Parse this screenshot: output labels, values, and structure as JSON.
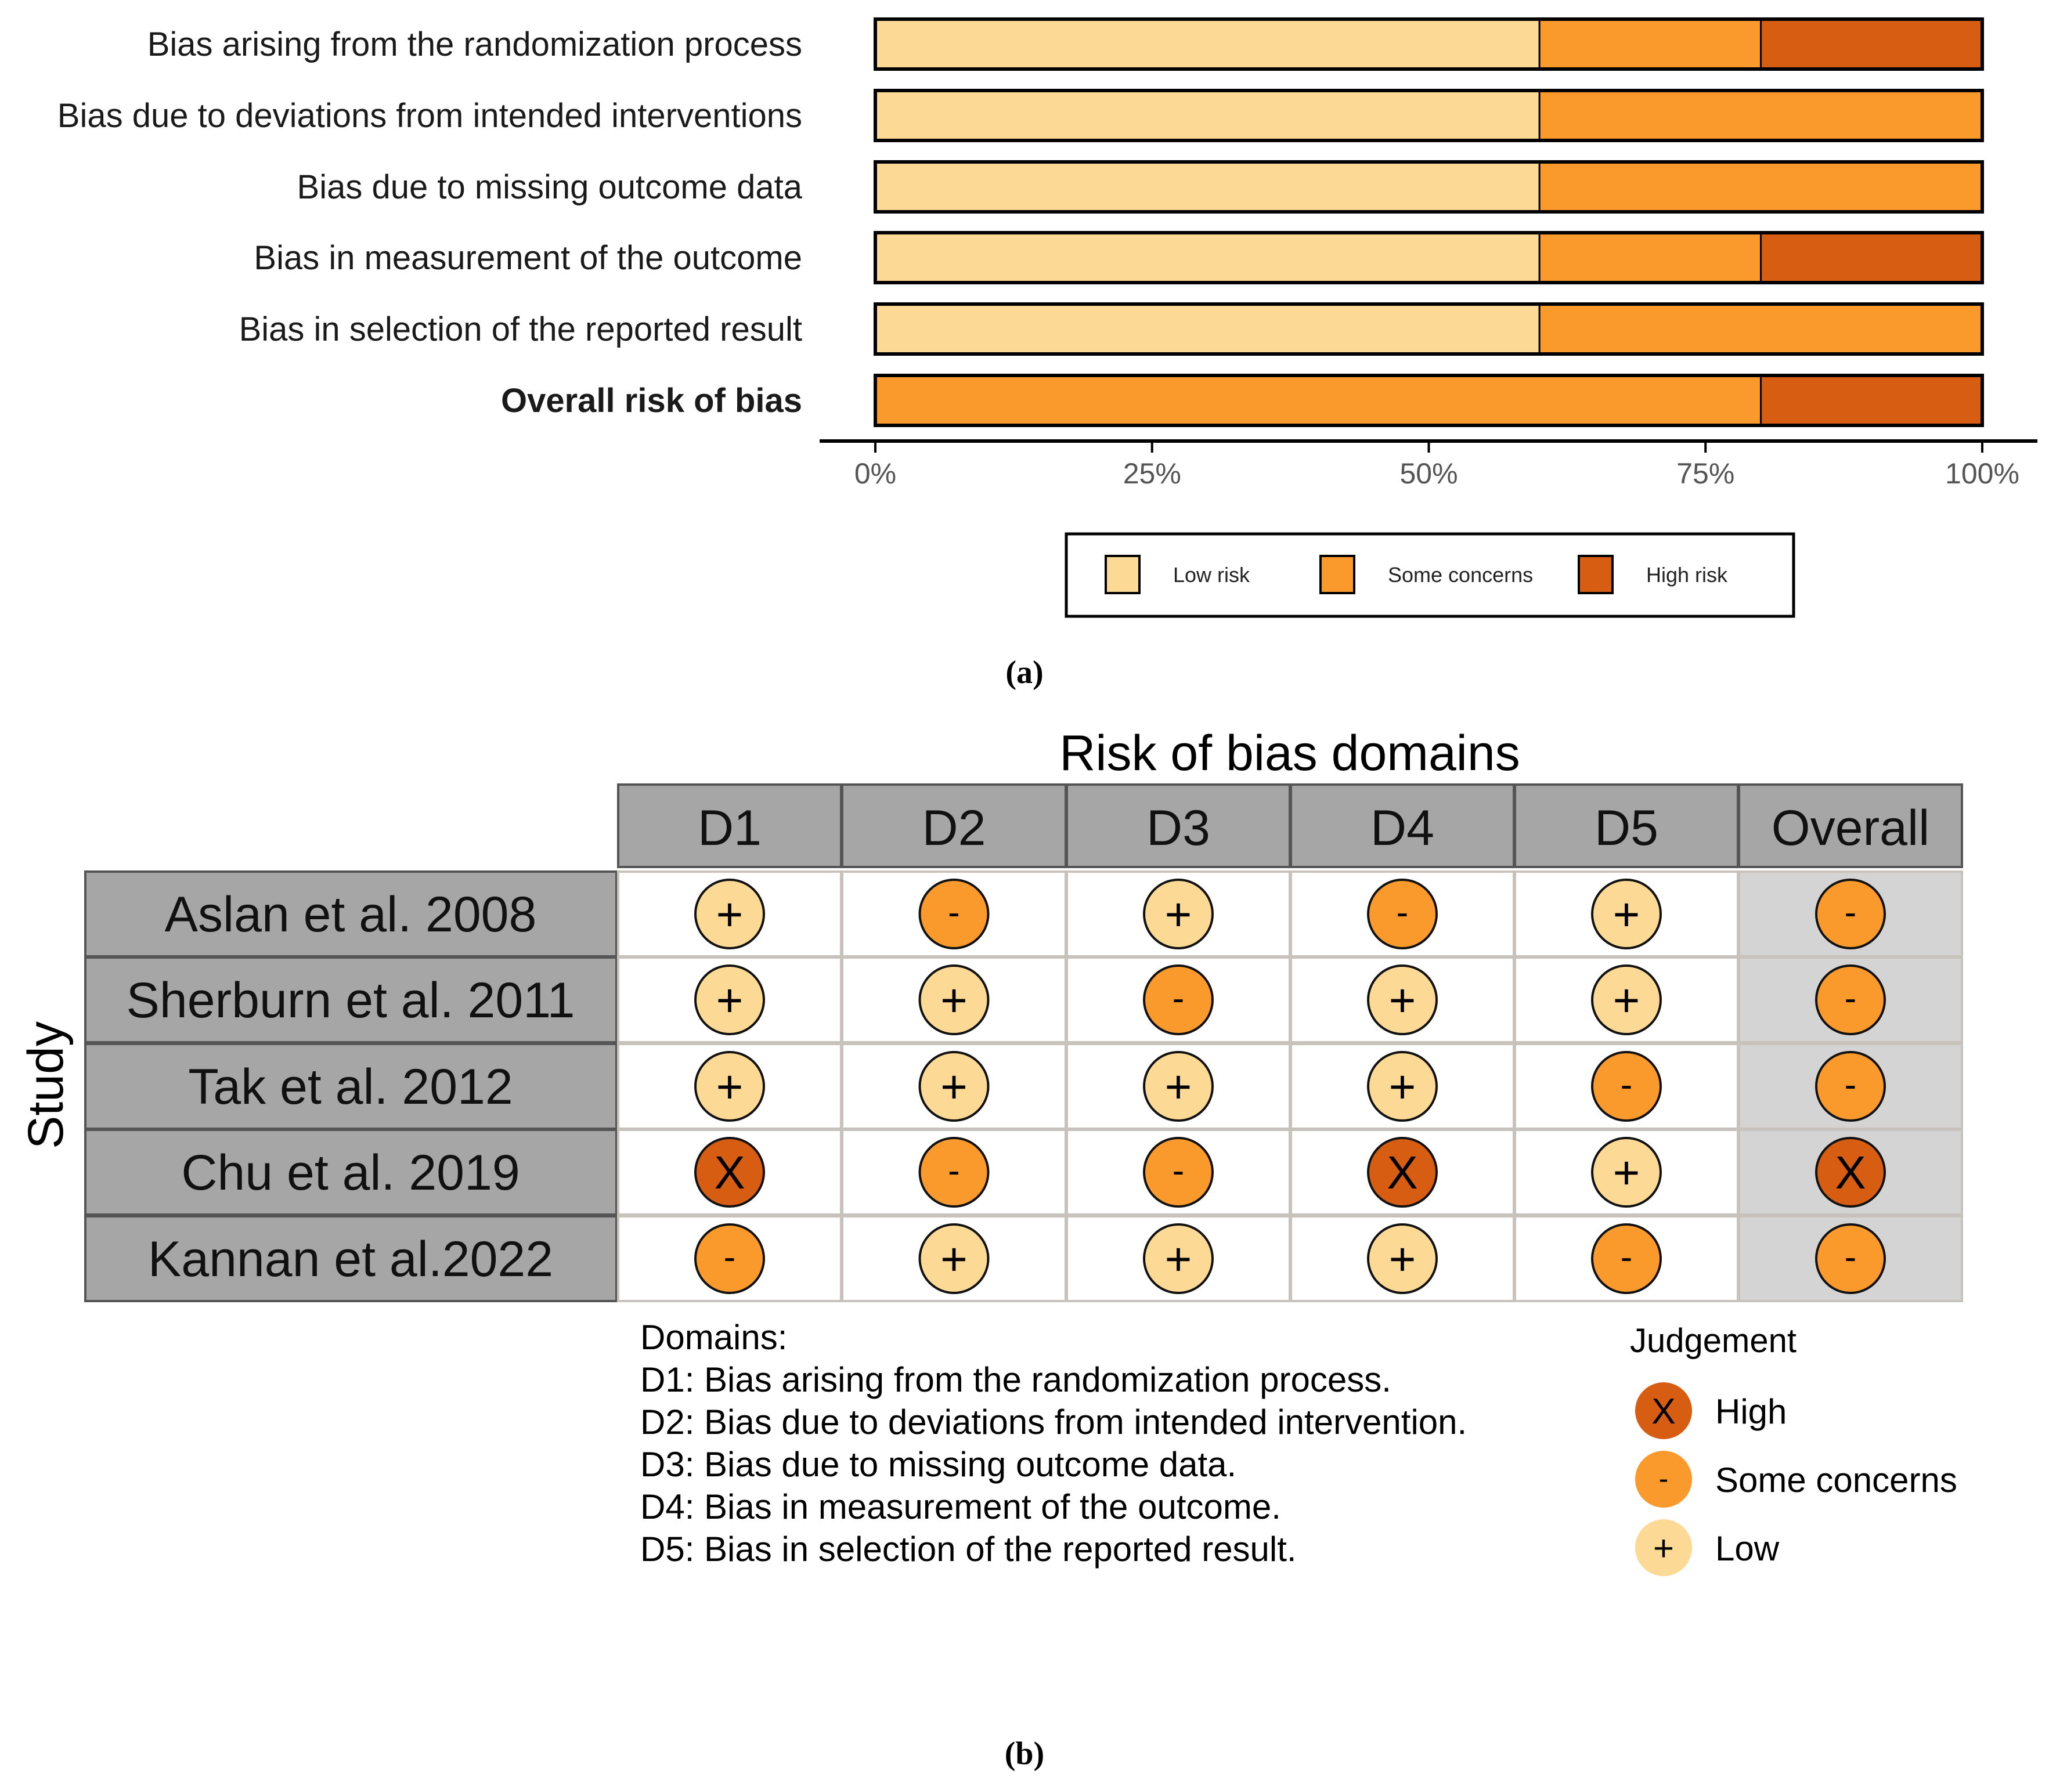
{
  "colors": {
    "low": "#fdd996",
    "some": "#fb9a2c",
    "high": "#d75d13",
    "header_bg": "#a6a6a6",
    "overall_bg": "#d4d4d4",
    "grid": "#c8c2bc"
  },
  "chart_data": [
    {
      "type": "bar",
      "stacked": "horizontal",
      "title": "",
      "categories": [
        "Bias arising from the randomization process",
        "Bias due to deviations from intended interventions",
        "Bias due to missing outcome data",
        "Bias in measurement of the outcome",
        "Bias in selection of the reported result",
        "Overall risk of bias"
      ],
      "bold_category": "Overall risk of bias",
      "series": [
        {
          "name": "Low risk",
          "color_key": "low",
          "values": [
            60,
            60,
            60,
            60,
            60,
            0
          ]
        },
        {
          "name": "Some concerns",
          "color_key": "some",
          "values": [
            20,
            40,
            40,
            20,
            40,
            80
          ]
        },
        {
          "name": "High risk",
          "color_key": "high",
          "values": [
            20,
            0,
            0,
            20,
            0,
            20
          ]
        }
      ],
      "xlim": [
        0,
        100
      ],
      "xticks": [
        0,
        25,
        50,
        75,
        100
      ],
      "xtick_labels": [
        "0%",
        "25%",
        "50%",
        "75%",
        "100%"
      ],
      "legend": [
        "Low risk",
        "Some concerns",
        "High risk"
      ],
      "legend_position": "bottom",
      "panel_label": "(a)"
    },
    {
      "type": "table",
      "title": "Risk of bias domains",
      "row_axis_label": "Study",
      "columns": [
        "D1",
        "D2",
        "D3",
        "D4",
        "D5",
        "Overall"
      ],
      "rows": [
        {
          "study": "Aslan et al. 2008",
          "judgements": [
            "+",
            "-",
            "+",
            "-",
            "+",
            "-"
          ]
        },
        {
          "study": "Sherburn et al. 2011",
          "judgements": [
            "+",
            "+",
            "-",
            "+",
            "+",
            "-"
          ]
        },
        {
          "study": "Tak et al. 2012",
          "judgements": [
            "+",
            "+",
            "+",
            "+",
            "-",
            "-"
          ]
        },
        {
          "study": "Chu et al. 2019",
          "judgements": [
            "X",
            "-",
            "-",
            "X",
            "+",
            "X"
          ]
        },
        {
          "study": "Kannan et al.2022",
          "judgements": [
            "-",
            "+",
            "+",
            "+",
            "-",
            "-"
          ]
        }
      ],
      "domains_title": "Domains:",
      "domains": [
        "D1: Bias arising from the randomization process.",
        "D2: Bias due to deviations from intended intervention.",
        "D3: Bias due to missing outcome data.",
        "D4: Bias in measurement of the outcome.",
        "D5: Bias in selection of the reported result."
      ],
      "judgement_title": "Judgement",
      "judgement_legend": [
        {
          "symbol": "X",
          "label": "High",
          "color_key": "high"
        },
        {
          "symbol": "-",
          "label": "Some concerns",
          "color_key": "some"
        },
        {
          "symbol": "+",
          "label": "Low",
          "color_key": "low"
        }
      ],
      "panel_label": "(b)"
    }
  ]
}
